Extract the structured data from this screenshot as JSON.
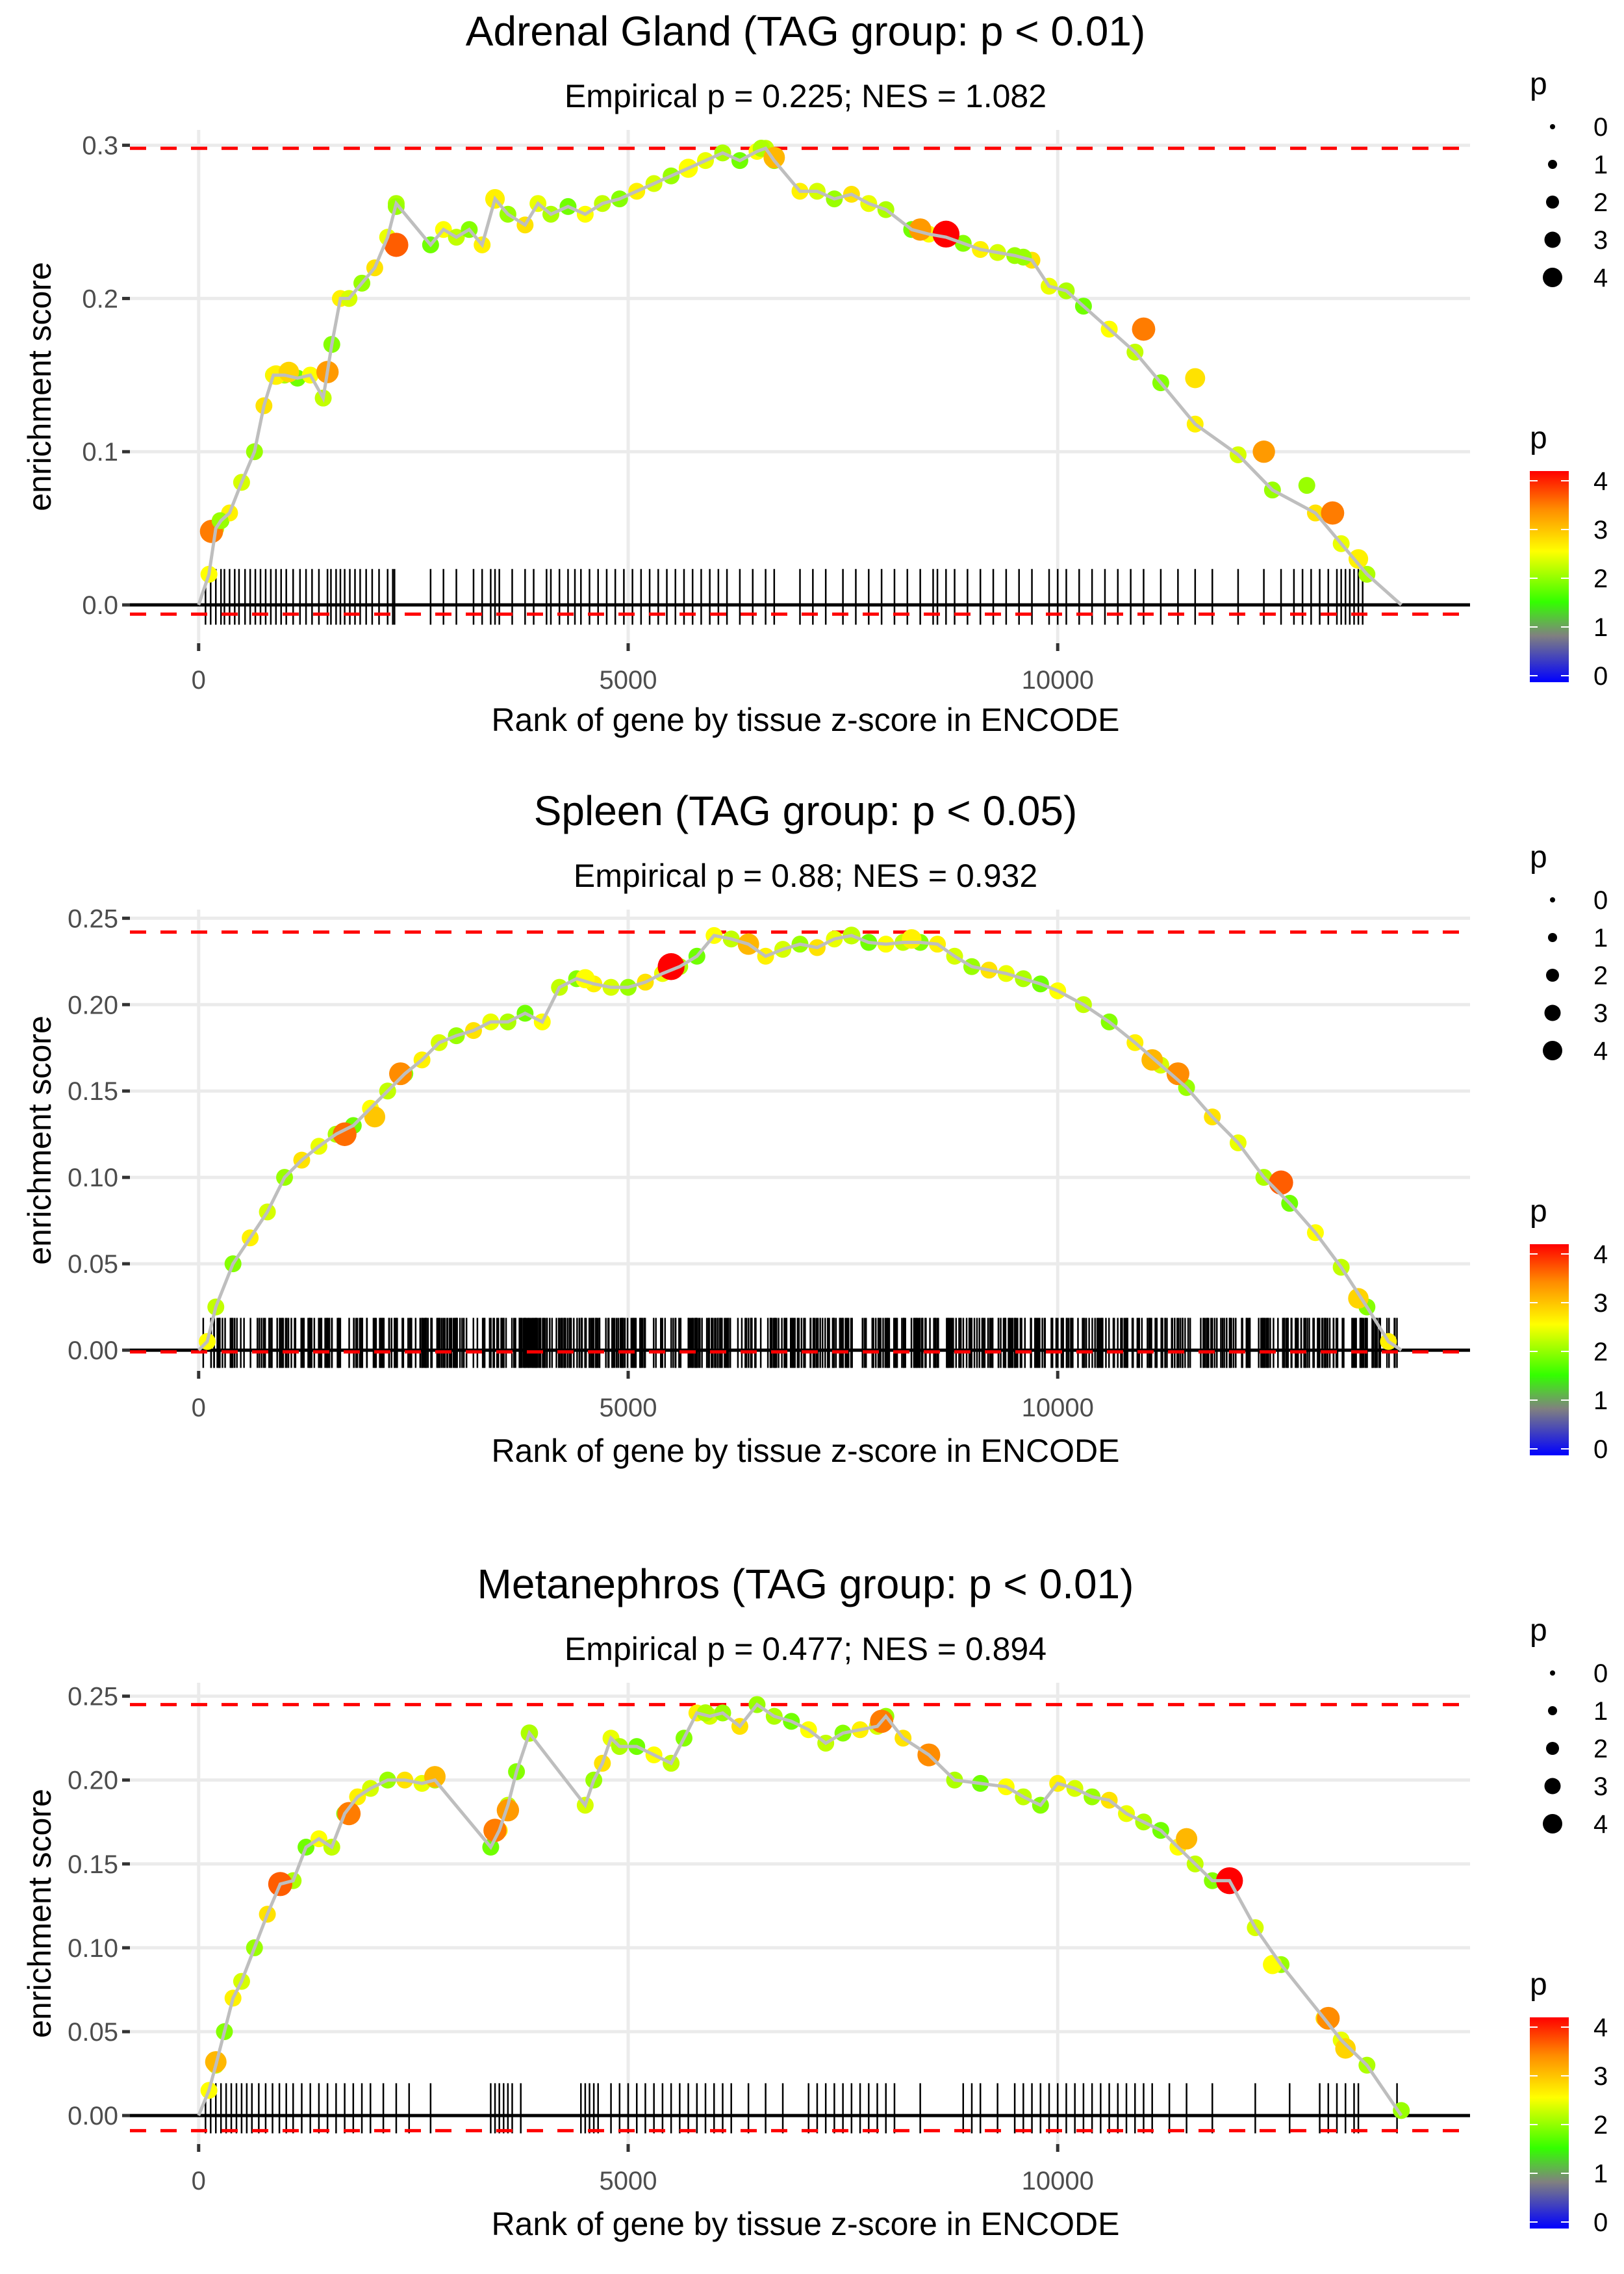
{
  "chart_data": [
    {
      "type": "line",
      "title": "Adrenal Gland (TAG group: p < 0.01)",
      "subtitle": "Empirical p = 0.225; NES = 1.082",
      "xlabel": "Rank of gene by tissue z-score in ENCODE",
      "ylabel": "enrichment score",
      "xlim": [
        -800,
        14800
      ],
      "ylim": [
        -0.025,
        0.31
      ],
      "xticks": [
        0,
        5000,
        10000
      ],
      "xtick_labels": [
        "0",
        "5000",
        "10000"
      ],
      "yticks": [
        0.0,
        0.1,
        0.2,
        0.3
      ],
      "ytick_labels": [
        "0.0",
        "0.1",
        "0.2",
        "0.3"
      ],
      "max_es_line": 0.298,
      "min_es_line": -0.006,
      "curve": {
        "x": [
          0,
          120,
          200,
          260,
          360,
          500,
          650,
          760,
          870,
          1000,
          1150,
          1300,
          1450,
          1550,
          1650,
          1750,
          1900,
          2050,
          2200,
          2300,
          2700,
          2850,
          3000,
          3150,
          3300,
          3450,
          3600,
          3800,
          3950,
          4100,
          4300,
          4500,
          4700,
          4900,
          5100,
          5300,
          5500,
          5700,
          5900,
          6100,
          6300,
          6500,
          6600,
          6700,
          7000,
          7200,
          7400,
          7600,
          7800,
          8000,
          8300,
          8500,
          8700,
          8900,
          9100,
          9300,
          9500,
          9700,
          9900,
          10100,
          10300,
          10600,
          10900,
          11200,
          11600,
          12100,
          12500,
          13000,
          13300,
          13600,
          14000
        ],
        "y": [
          0.0,
          0.02,
          0.05,
          0.055,
          0.06,
          0.08,
          0.1,
          0.13,
          0.15,
          0.15,
          0.148,
          0.15,
          0.135,
          0.17,
          0.2,
          0.2,
          0.21,
          0.22,
          0.24,
          0.262,
          0.235,
          0.245,
          0.24,
          0.245,
          0.235,
          0.265,
          0.255,
          0.248,
          0.262,
          0.255,
          0.26,
          0.255,
          0.262,
          0.265,
          0.27,
          0.275,
          0.28,
          0.285,
          0.29,
          0.295,
          0.29,
          0.296,
          0.298,
          0.29,
          0.27,
          0.27,
          0.265,
          0.268,
          0.262,
          0.258,
          0.245,
          0.242,
          0.24,
          0.236,
          0.232,
          0.23,
          0.228,
          0.225,
          0.208,
          0.205,
          0.195,
          0.18,
          0.165,
          0.145,
          0.118,
          0.098,
          0.075,
          0.06,
          0.04,
          0.02,
          0.0
        ]
      },
      "hits": [
        80,
        140,
        200,
        260,
        300,
        360,
        420,
        470,
        540,
        600,
        660,
        720,
        780,
        840,
        900,
        960,
        1020,
        1100,
        1180,
        1250,
        1320,
        1400,
        1500,
        1540,
        1600,
        1650,
        1700,
        1760,
        1820,
        1880,
        1950,
        2020,
        2100,
        2200,
        2260,
        2280,
        2700,
        2850,
        3000,
        3200,
        3300,
        3400,
        3450,
        3500,
        3650,
        3800,
        3900,
        4050,
        4100,
        4200,
        4300,
        4380,
        4450,
        4550,
        4650,
        4750,
        4850,
        4950,
        5050,
        5150,
        5250,
        5350,
        5450,
        5550,
        5650,
        5750,
        5850,
        5950,
        6050,
        6150,
        6300,
        6450,
        6600,
        6700,
        7000,
        7150,
        7300,
        7500,
        7650,
        7800,
        7950,
        8100,
        8250,
        8400,
        8550,
        8600,
        8700,
        8800,
        8950,
        9100,
        9250,
        9400,
        9550,
        9700,
        9900,
        10000,
        10100,
        10250,
        10400,
        10550,
        10700,
        10850,
        11000,
        11200,
        11400,
        11600,
        11800,
        12100,
        12400,
        12600,
        12750,
        12850,
        12950,
        13050,
        13150,
        13250,
        13300,
        13350,
        13400,
        13450,
        13500,
        13550
      ],
      "dots": [
        {
          "x": 150,
          "y": 0.048,
          "p": 3.4
        },
        {
          "x": 250,
          "y": 0.055,
          "p": 2.0
        },
        {
          "x": 900,
          "y": 0.15,
          "p": 2.6
        },
        {
          "x": 1050,
          "y": 0.152,
          "p": 2.8
        },
        {
          "x": 1500,
          "y": 0.152,
          "p": 3.2
        },
        {
          "x": 2300,
          "y": 0.235,
          "p": 3.6
        },
        {
          "x": 2300,
          "y": 0.26,
          "p": 2.0
        },
        {
          "x": 3450,
          "y": 0.265,
          "p": 2.6
        },
        {
          "x": 5700,
          "y": 0.285,
          "p": 2.5
        },
        {
          "x": 6550,
          "y": 0.298,
          "p": 2.1
        },
        {
          "x": 6700,
          "y": 0.292,
          "p": 3.0
        },
        {
          "x": 8400,
          "y": 0.245,
          "p": 3.2
        },
        {
          "x": 8700,
          "y": 0.242,
          "p": 4.2
        },
        {
          "x": 9600,
          "y": 0.227,
          "p": 2.0
        },
        {
          "x": 11000,
          "y": 0.18,
          "p": 3.4
        },
        {
          "x": 11600,
          "y": 0.148,
          "p": 2.7
        },
        {
          "x": 12400,
          "y": 0.1,
          "p": 3.2
        },
        {
          "x": 12900,
          "y": 0.078,
          "p": 2.0
        },
        {
          "x": 13200,
          "y": 0.06,
          "p": 3.4
        },
        {
          "x": 13500,
          "y": 0.03,
          "p": 2.6
        }
      ]
    },
    {
      "type": "line",
      "title": "Spleen (TAG group: p < 0.05)",
      "subtitle": "Empirical p = 0.88; NES = 0.932",
      "xlabel": "Rank of gene by tissue z-score in ENCODE",
      "ylabel": "enrichment score",
      "xlim": [
        -800,
        14800
      ],
      "ylim": [
        -0.012,
        0.255
      ],
      "xticks": [
        0,
        5000,
        10000
      ],
      "xtick_labels": [
        "0",
        "5000",
        "10000"
      ],
      "yticks": [
        0.0,
        0.05,
        0.1,
        0.15,
        0.2,
        0.25
      ],
      "ytick_labels": [
        "0.00",
        "0.05",
        "0.10",
        "0.15",
        "0.20",
        "0.25"
      ],
      "max_es_line": 0.242,
      "min_es_line": -0.001,
      "curve": {
        "x": [
          0,
          100,
          200,
          400,
          600,
          800,
          1000,
          1200,
          1400,
          1600,
          1800,
          2000,
          2200,
          2400,
          2600,
          2800,
          3000,
          3200,
          3400,
          3600,
          3800,
          4000,
          4200,
          4400,
          4600,
          4800,
          5000,
          5200,
          5400,
          5600,
          5800,
          6000,
          6200,
          6400,
          6600,
          6800,
          7000,
          7200,
          7400,
          7600,
          7800,
          8000,
          8200,
          8400,
          8600,
          8800,
          9000,
          9200,
          9400,
          9600,
          9800,
          10000,
          10300,
          10600,
          10900,
          11200,
          11500,
          11800,
          12100,
          12400,
          12700,
          13000,
          13300,
          13600,
          13850,
          14000
        ],
        "y": [
          0.0,
          0.005,
          0.025,
          0.05,
          0.065,
          0.08,
          0.1,
          0.11,
          0.118,
          0.125,
          0.13,
          0.14,
          0.15,
          0.16,
          0.168,
          0.178,
          0.182,
          0.185,
          0.19,
          0.19,
          0.195,
          0.19,
          0.21,
          0.215,
          0.212,
          0.21,
          0.21,
          0.213,
          0.218,
          0.222,
          0.228,
          0.24,
          0.238,
          0.235,
          0.228,
          0.232,
          0.235,
          0.233,
          0.238,
          0.24,
          0.236,
          0.235,
          0.236,
          0.236,
          0.235,
          0.228,
          0.222,
          0.22,
          0.218,
          0.215,
          0.212,
          0.208,
          0.2,
          0.19,
          0.178,
          0.165,
          0.152,
          0.135,
          0.12,
          0.1,
          0.085,
          0.068,
          0.048,
          0.025,
          0.005,
          0.0
        ]
      },
      "hits_range": {
        "start": 50,
        "end": 13950,
        "count": 700
      },
      "dots": [
        {
          "x": 1700,
          "y": 0.125,
          "p": 3.5
        },
        {
          "x": 2050,
          "y": 0.135,
          "p": 2.9
        },
        {
          "x": 2350,
          "y": 0.16,
          "p": 3.3
        },
        {
          "x": 4500,
          "y": 0.215,
          "p": 2.5
        },
        {
          "x": 5500,
          "y": 0.222,
          "p": 4.2
        },
        {
          "x": 6400,
          "y": 0.235,
          "p": 3.0
        },
        {
          "x": 7600,
          "y": 0.24,
          "p": 2.2
        },
        {
          "x": 8300,
          "y": 0.238,
          "p": 2.6
        },
        {
          "x": 11100,
          "y": 0.168,
          "p": 3.0
        },
        {
          "x": 11400,
          "y": 0.16,
          "p": 3.3
        },
        {
          "x": 12600,
          "y": 0.097,
          "p": 3.6
        },
        {
          "x": 13500,
          "y": 0.03,
          "p": 2.8
        }
      ]
    },
    {
      "type": "line",
      "title": "Metanephros (TAG group: p < 0.01)",
      "subtitle": "Empirical p = 0.477; NES = 0.894",
      "xlabel": "Rank of gene by tissue z-score in ENCODE",
      "ylabel": "enrichment score",
      "xlim": [
        -800,
        14800
      ],
      "ylim": [
        -0.017,
        0.258
      ],
      "xticks": [
        0,
        5000,
        10000
      ],
      "xtick_labels": [
        "0",
        "5000",
        "10000"
      ],
      "yticks": [
        0.0,
        0.05,
        0.1,
        0.15,
        0.2,
        0.25
      ],
      "ytick_labels": [
        "0.00",
        "0.05",
        "0.10",
        "0.15",
        "0.20",
        "0.25"
      ],
      "max_es_line": 0.245,
      "min_es_line": -0.009,
      "curve": {
        "x": [
          0,
          120,
          200,
          300,
          400,
          500,
          650,
          800,
          950,
          1100,
          1250,
          1400,
          1550,
          1700,
          1850,
          2000,
          2200,
          2400,
          2600,
          2750,
          3400,
          3500,
          3600,
          3700,
          3850,
          4500,
          4600,
          4700,
          4800,
          4900,
          5100,
          5300,
          5500,
          5650,
          5800,
          5950,
          6100,
          6300,
          6500,
          6700,
          6900,
          7100,
          7300,
          7500,
          7700,
          7900,
          8000,
          8200,
          8500,
          8800,
          9100,
          9400,
          9600,
          9800,
          10000,
          10200,
          10400,
          10600,
          10800,
          11000,
          11200,
          11400,
          11600,
          11800,
          12000,
          12300,
          12600,
          13100,
          13300,
          13600,
          14000
        ],
        "y": [
          0.0,
          0.015,
          0.03,
          0.05,
          0.07,
          0.08,
          0.1,
          0.12,
          0.138,
          0.14,
          0.16,
          0.165,
          0.16,
          0.18,
          0.19,
          0.195,
          0.2,
          0.2,
          0.198,
          0.2,
          0.16,
          0.17,
          0.185,
          0.205,
          0.228,
          0.185,
          0.2,
          0.21,
          0.225,
          0.22,
          0.22,
          0.215,
          0.21,
          0.225,
          0.24,
          0.238,
          0.24,
          0.232,
          0.245,
          0.238,
          0.235,
          0.23,
          0.222,
          0.228,
          0.23,
          0.232,
          0.238,
          0.225,
          0.215,
          0.2,
          0.198,
          0.196,
          0.19,
          0.185,
          0.198,
          0.195,
          0.19,
          0.188,
          0.18,
          0.175,
          0.17,
          0.16,
          0.15,
          0.14,
          0.14,
          0.112,
          0.09,
          0.058,
          0.045,
          0.03,
          0.0
        ]
      },
      "hits": [
        80,
        140,
        200,
        260,
        320,
        380,
        440,
        500,
        560,
        620,
        700,
        780,
        860,
        940,
        1020,
        1100,
        1200,
        1300,
        1400,
        1500,
        1600,
        1700,
        1800,
        1900,
        2000,
        2150,
        2300,
        2450,
        2700,
        3400,
        3450,
        3500,
        3550,
        3600,
        3650,
        3750,
        4450,
        4500,
        4550,
        4600,
        4650,
        4800,
        4900,
        5000,
        5100,
        5200,
        5300,
        5400,
        5500,
        5600,
        5700,
        5800,
        5900,
        6000,
        6100,
        6200,
        6400,
        6600,
        6800,
        7100,
        7200,
        7300,
        7400,
        7500,
        7600,
        7700,
        7800,
        7900,
        8000,
        8100,
        8400,
        8900,
        9000,
        9100,
        9300,
        9500,
        9600,
        9700,
        9800,
        9900,
        10000,
        10100,
        10200,
        10300,
        10400,
        10500,
        10600,
        10700,
        10800,
        10900,
        11000,
        11100,
        11300,
        11500,
        11800,
        12300,
        12700,
        13050,
        13150,
        13250,
        13350,
        13450,
        13500,
        13950
      ],
      "dots": [
        {
          "x": 200,
          "y": 0.032,
          "p": 3.0
        },
        {
          "x": 950,
          "y": 0.138,
          "p": 3.6
        },
        {
          "x": 1750,
          "y": 0.18,
          "p": 3.4
        },
        {
          "x": 2750,
          "y": 0.202,
          "p": 3.0
        },
        {
          "x": 3450,
          "y": 0.17,
          "p": 3.4
        },
        {
          "x": 3600,
          "y": 0.182,
          "p": 3.2
        },
        {
          "x": 3850,
          "y": 0.228,
          "p": 2.1
        },
        {
          "x": 5900,
          "y": 0.24,
          "p": 2.1
        },
        {
          "x": 6500,
          "y": 0.245,
          "p": 2.0
        },
        {
          "x": 7950,
          "y": 0.235,
          "p": 3.4
        },
        {
          "x": 8500,
          "y": 0.215,
          "p": 3.3
        },
        {
          "x": 11500,
          "y": 0.165,
          "p": 3.0
        },
        {
          "x": 12000,
          "y": 0.14,
          "p": 4.2
        },
        {
          "x": 12500,
          "y": 0.09,
          "p": 2.5
        },
        {
          "x": 13150,
          "y": 0.058,
          "p": 3.3
        },
        {
          "x": 13350,
          "y": 0.04,
          "p": 2.8
        },
        {
          "x": 14000,
          "y": 0.003,
          "p": 2.0
        }
      ]
    }
  ],
  "legends": {
    "size_title": "p",
    "size_labels": [
      "0",
      "1",
      "2",
      "3",
      "4"
    ],
    "color_title": "p",
    "color_labels": [
      "4",
      "3",
      "2",
      "1",
      "0"
    ],
    "color_stops": [
      "#0000ff",
      "#808080",
      "#33ff00",
      "#ffff00",
      "#ff8000",
      "#ff0000"
    ]
  },
  "colors": {
    "curve": "#bebebe",
    "dashed": "#ff0000",
    "zero_line": "#000000",
    "grid": "#ebebeb",
    "hits": "#000000"
  }
}
